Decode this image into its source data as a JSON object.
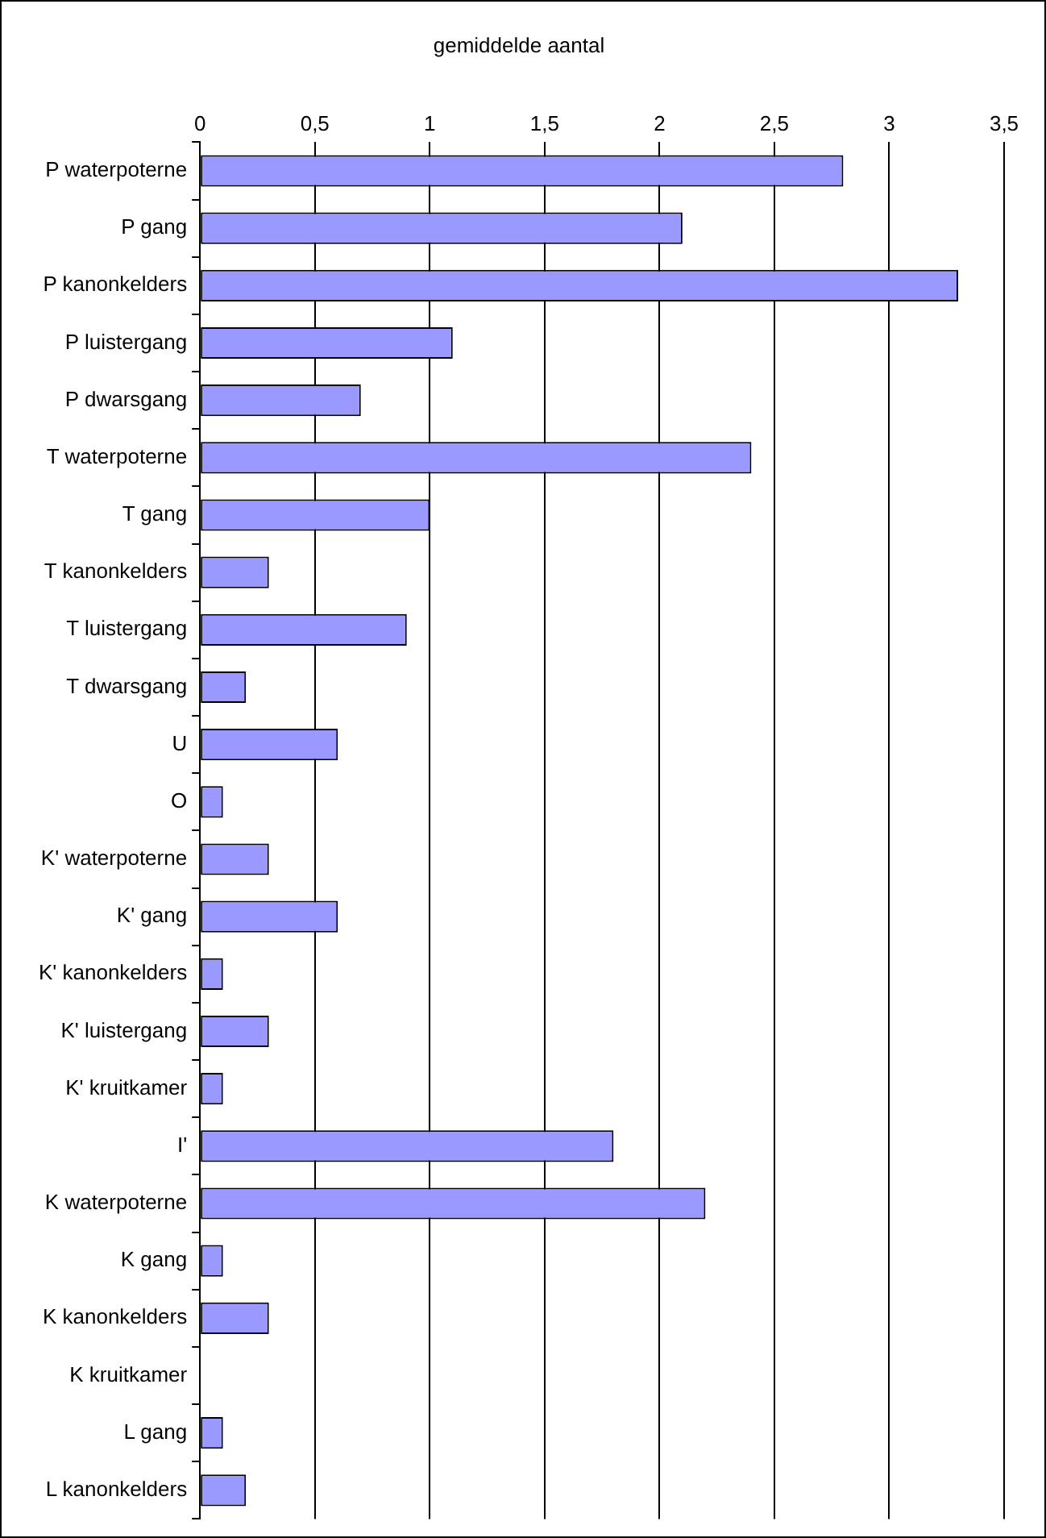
{
  "chart_data": {
    "type": "bar",
    "orientation": "horizontal",
    "title": "gemiddelde aantal",
    "categories": [
      "P waterpoterne",
      "P gang",
      "P kanonkelders",
      "P luistergang",
      "P dwarsgang",
      "T waterpoterne",
      "T gang",
      "T kanonkelders",
      "T luistergang",
      "T dwarsgang",
      "U",
      "O",
      "K' waterpoterne",
      "K' gang",
      "K' kanonkelders",
      "K' luistergang",
      "K' kruitkamer",
      "I'",
      "K waterpoterne",
      "K gang",
      "K kanonkelders",
      "K kruitkamer",
      "L gang",
      "L kanonkelders"
    ],
    "values": [
      2.8,
      2.1,
      3.3,
      1.1,
      0.7,
      2.4,
      1.0,
      0.3,
      0.9,
      0.2,
      0.6,
      0.1,
      0.3,
      0.6,
      0.1,
      0.3,
      0.1,
      1.8,
      2.2,
      0.1,
      0.3,
      0,
      0.1,
      0.2
    ],
    "color": "#9999ff",
    "xlim": [
      0,
      3.5
    ],
    "xticks": [
      0,
      {
        "value": 0.5,
        "label": "0,5"
      },
      1,
      {
        "value": 1.5,
        "label": "1,5"
      },
      2,
      {
        "value": 2.5,
        "label": "2,5"
      },
      3,
      {
        "value": 3.5,
        "label": "3,5"
      }
    ],
    "grid": "x",
    "legend": false
  }
}
